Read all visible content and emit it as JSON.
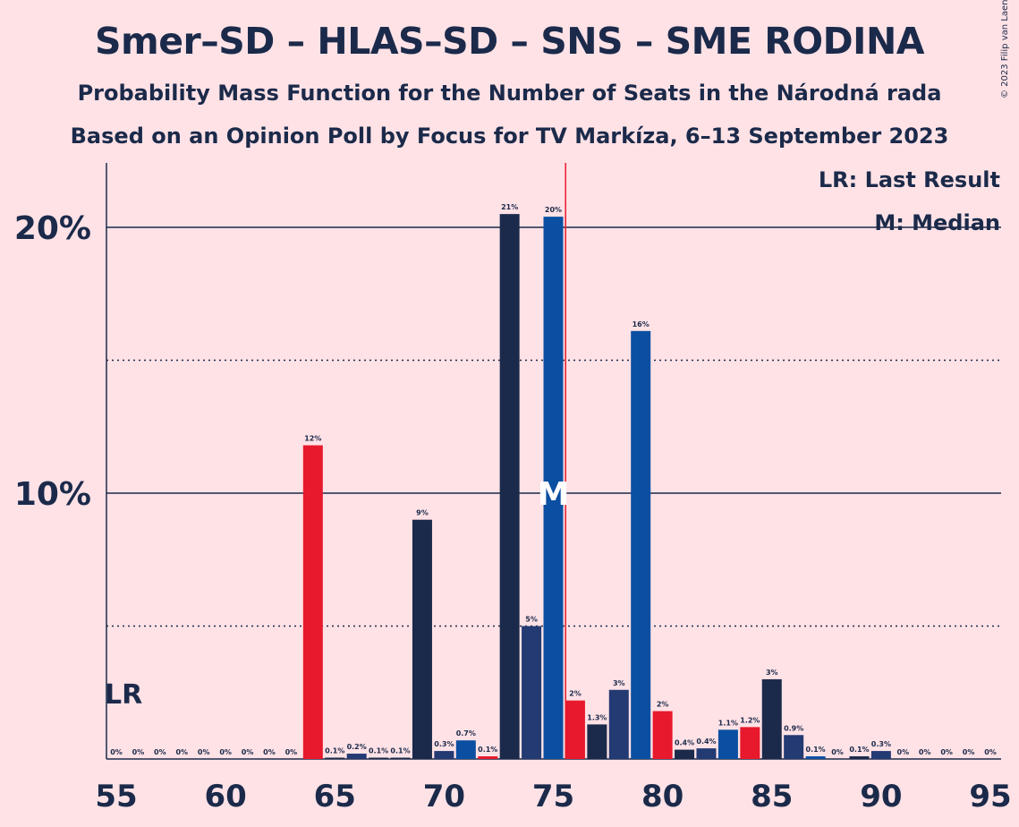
{
  "title": "Smer–SD – HLAS–SD – SNS – SME RODINA",
  "subtitle1": "Probability Mass Function for the Number of Seats in the Národná rada",
  "subtitle2": "Based on an Opinion Poll by Focus for TV Markíza, 6–13 September 2023",
  "copyright": "© 2023 Filip van Laenen",
  "legend": {
    "last_result": "LR: Last Result",
    "median": "M: Median"
  },
  "markers": {
    "last_result_label": "LR",
    "median_label": "M",
    "last_result_seat": 55,
    "median_seat": 75,
    "majority_seat": 76
  },
  "colors": {
    "dark_navy": "#1B2A4A",
    "navy": "#233A73",
    "blue": "#0A4FA1",
    "red": "#E8192C",
    "background": "#FFE2E6",
    "majority_line": "#E8192C"
  },
  "chart_data": {
    "type": "bar",
    "title": "Smer–SD – HLAS–SD – SNS – SME RODINA",
    "xlabel": "",
    "ylabel": "",
    "xlim": [
      55,
      95
    ],
    "ylim": [
      0,
      22.5
    ],
    "x_ticks": [
      "55",
      "60",
      "65",
      "70",
      "75",
      "80",
      "85",
      "90",
      "95"
    ],
    "y_ticks": [
      {
        "value": 10,
        "label": "10%"
      },
      {
        "value": 20,
        "label": "20%"
      }
    ],
    "dotted_gridlines": [
      5,
      15
    ],
    "x": [
      55,
      56,
      57,
      58,
      59,
      60,
      61,
      62,
      63,
      64,
      65,
      66,
      67,
      68,
      69,
      70,
      71,
      72,
      73,
      74,
      75,
      76,
      77,
      78,
      79,
      80,
      81,
      82,
      83,
      84,
      85,
      86,
      87,
      88,
      89,
      90,
      91,
      92,
      93,
      94,
      95
    ],
    "values": [
      0,
      0,
      0,
      0,
      0,
      0,
      0,
      0,
      0,
      11.8,
      0.05,
      0.2,
      0.05,
      0.05,
      9.0,
      0.3,
      0.7,
      0.1,
      20.5,
      5.0,
      20.4,
      2.2,
      1.3,
      2.6,
      16.1,
      1.8,
      0.35,
      0.4,
      1.1,
      1.2,
      3.0,
      0.9,
      0.1,
      0,
      0.1,
      0.3,
      0,
      0,
      0,
      0,
      0
    ],
    "labels": [
      "0%",
      "0%",
      "0%",
      "0%",
      "0%",
      "0%",
      "0%",
      "0%",
      "0%",
      "12%",
      "0.1%",
      "0.2%",
      "0.1%",
      "0.1%",
      "9%",
      "0.3%",
      "0.7%",
      "0.1%",
      "21%",
      "5%",
      "20%",
      "2%",
      "1.3%",
      "3%",
      "16%",
      "2%",
      "0.4%",
      "0.4%",
      "1.1%",
      "1.2%",
      "3%",
      "0.9%",
      "0.1%",
      "0%",
      "0.1%",
      "0.3%",
      "0%",
      "0%",
      "0%",
      "0%",
      "0%"
    ],
    "bar_colors": [
      "dark_navy",
      "dark_navy",
      "dark_navy",
      "dark_navy",
      "dark_navy",
      "dark_navy",
      "dark_navy",
      "dark_navy",
      "dark_navy",
      "red",
      "dark_navy",
      "navy",
      "dark_navy",
      "dark_navy",
      "dark_navy",
      "navy",
      "blue",
      "red",
      "dark_navy",
      "navy",
      "blue",
      "red",
      "dark_navy",
      "navy",
      "blue",
      "red",
      "dark_navy",
      "navy",
      "blue",
      "red",
      "dark_navy",
      "navy",
      "blue",
      "red",
      "dark_navy",
      "navy",
      "blue",
      "red",
      "dark_navy",
      "navy",
      "blue"
    ]
  }
}
